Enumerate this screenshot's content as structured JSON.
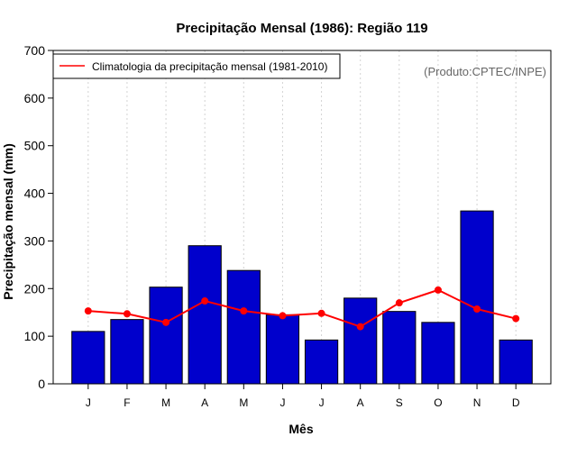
{
  "chart_data": {
    "type": "bar",
    "title": "Precipitação Mensal (1986): Região 119",
    "xlabel": "Mês",
    "ylabel": "Precipitação mensal (mm)",
    "categories": [
      "J",
      "F",
      "M",
      "A",
      "M",
      "J",
      "J",
      "A",
      "S",
      "O",
      "N",
      "D"
    ],
    "ylim": [
      0,
      700
    ],
    "yticks": [
      0,
      100,
      200,
      300,
      400,
      500,
      600,
      700
    ],
    "grid": "vertical-dotted",
    "legend_position": "top-left",
    "credit": "(Produto:CPTEC/INPE)",
    "series": [
      {
        "name": "Precipitação mensal (1986)",
        "kind": "bar",
        "color": "#0000CC",
        "values": [
          110,
          135,
          203,
          290,
          238,
          145,
          92,
          180,
          152,
          129,
          363,
          92
        ]
      },
      {
        "name": "Climatologia da precipitação mensal (1981-2010)",
        "kind": "line",
        "color": "#FF0000",
        "values": [
          153,
          147,
          129,
          174,
          153,
          143,
          148,
          120,
          170,
          197,
          157,
          137
        ]
      }
    ]
  }
}
